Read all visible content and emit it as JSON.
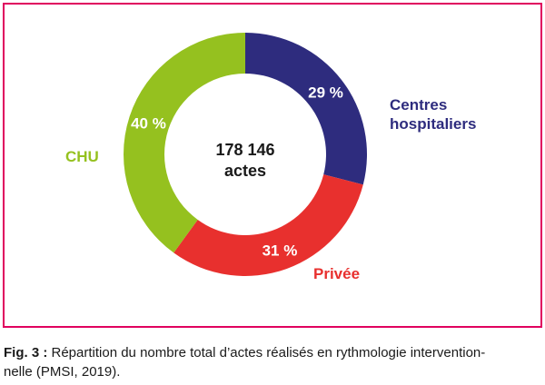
{
  "chart_data": {
    "type": "pie",
    "title": "",
    "center_label": [
      "178 146",
      "actes"
    ],
    "slices": [
      {
        "name": "Centres hospitaliers",
        "label_lines": [
          "Centres",
          "hospitaliers"
        ],
        "value": 29,
        "value_label": "29 %",
        "color": "#2e2c7e"
      },
      {
        "name": "Privée",
        "label_lines": [
          "Privée"
        ],
        "value": 31,
        "value_label": "31 %",
        "color": "#e8302e"
      },
      {
        "name": "CHU",
        "label_lines": [
          "CHU"
        ],
        "value": 40,
        "value_label": "40 %",
        "color": "#95c11f"
      }
    ]
  },
  "caption": {
    "prefix": "Fig. 3 :",
    "line1": " Répartition du nombre total d’actes réalisés en rythmologie intervention-",
    "line2": "nelle (PMSI, 2019)."
  },
  "colors": {
    "frame": "#e0005e",
    "text": "#1a1a1a"
  }
}
